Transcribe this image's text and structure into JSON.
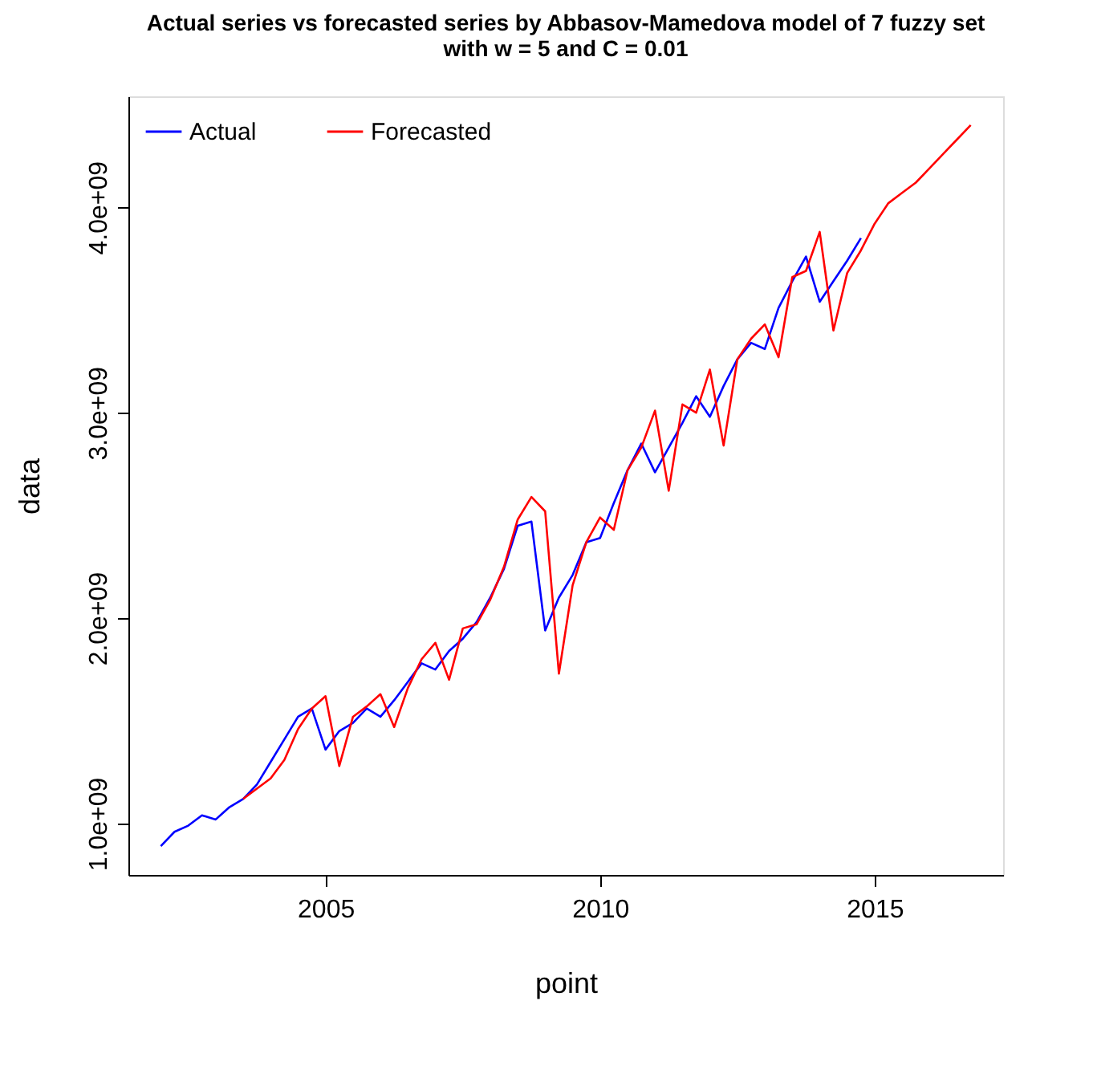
{
  "chart_data": {
    "type": "line",
    "title": "Actual series vs forecasted series by Abbasov-Mamedova model of 7 fuzzy set\nwith w = 5  and C = 0.01",
    "xlabel": "point",
    "ylabel": "data",
    "xlim": [
      2001.41,
      2017.34
    ],
    "xticks": [
      2005,
      2010,
      2015
    ],
    "ylim": [
      750000000,
      4540000000
    ],
    "yticks": [
      {
        "value": 1000000000,
        "label": "1.0e+09"
      },
      {
        "value": 2000000000,
        "label": "2.0e+09"
      },
      {
        "value": 3000000000,
        "label": "3.0e+09"
      },
      {
        "value": 4000000000,
        "label": "4.0e+09"
      }
    ],
    "grid": false,
    "legend": "top left",
    "marker": "none",
    "line_style": "solid",
    "series": [
      {
        "name": "Actual",
        "color": "#0000ff",
        "x": [
          2002.0,
          2002.25,
          2002.5,
          2002.75,
          2003.0,
          2003.25,
          2003.5,
          2003.75,
          2004.0,
          2004.25,
          2004.5,
          2004.75,
          2005.0,
          2005.25,
          2005.5,
          2005.75,
          2006.0,
          2006.25,
          2006.5,
          2006.75,
          2007.0,
          2007.25,
          2007.5,
          2007.75,
          2008.0,
          2008.25,
          2008.5,
          2008.75,
          2009.0,
          2009.25,
          2009.5,
          2009.75,
          2010.0,
          2010.25,
          2010.5,
          2010.75,
          2011.0,
          2011.25,
          2011.5,
          2011.75,
          2012.0,
          2012.25,
          2012.5,
          2012.75,
          2013.0,
          2013.25,
          2013.5,
          2013.75,
          2014.0,
          2014.25,
          2014.5,
          2014.75
        ],
        "values": [
          890000000,
          960000000,
          990000000,
          1040000000,
          1020000000,
          1080000000,
          1120000000,
          1190000000,
          1300000000,
          1410000000,
          1520000000,
          1560000000,
          1360000000,
          1450000000,
          1490000000,
          1560000000,
          1520000000,
          1600000000,
          1690000000,
          1780000000,
          1750000000,
          1840000000,
          1900000000,
          1980000000,
          2100000000,
          2240000000,
          2450000000,
          2470000000,
          1940000000,
          2100000000,
          2210000000,
          2370000000,
          2390000000,
          2560000000,
          2720000000,
          2850000000,
          2710000000,
          2830000000,
          2950000000,
          3080000000,
          2980000000,
          3130000000,
          3260000000,
          3340000000,
          3310000000,
          3510000000,
          3640000000,
          3760000000,
          3540000000,
          3640000000,
          3740000000,
          3850000000
        ]
      },
      {
        "name": "Forecasted",
        "color": "#ff0000",
        "x": [
          2003.5,
          2003.75,
          2004.0,
          2004.25,
          2004.5,
          2004.75,
          2005.0,
          2005.25,
          2005.5,
          2005.75,
          2006.0,
          2006.25,
          2006.5,
          2006.75,
          2007.0,
          2007.25,
          2007.5,
          2007.75,
          2008.0,
          2008.25,
          2008.5,
          2008.75,
          2009.0,
          2009.25,
          2009.5,
          2009.75,
          2010.0,
          2010.25,
          2010.5,
          2010.75,
          2011.0,
          2011.25,
          2011.5,
          2011.75,
          2012.0,
          2012.25,
          2012.5,
          2012.75,
          2013.0,
          2013.25,
          2013.5,
          2013.75,
          2014.0,
          2014.25,
          2014.5,
          2014.75,
          2015.0,
          2015.25,
          2015.5,
          2015.75,
          2016.0,
          2016.25,
          2016.5,
          2016.75
        ],
        "values": [
          1120000000,
          1170000000,
          1220000000,
          1310000000,
          1460000000,
          1560000000,
          1620000000,
          1280000000,
          1520000000,
          1570000000,
          1630000000,
          1470000000,
          1660000000,
          1800000000,
          1880000000,
          1700000000,
          1950000000,
          1970000000,
          2090000000,
          2250000000,
          2480000000,
          2590000000,
          2520000000,
          1730000000,
          2160000000,
          2370000000,
          2490000000,
          2430000000,
          2720000000,
          2830000000,
          3010000000,
          2620000000,
          3040000000,
          3000000000,
          3210000000,
          2840000000,
          3260000000,
          3360000000,
          3430000000,
          3270000000,
          3660000000,
          3690000000,
          3880000000,
          3400000000,
          3680000000,
          3790000000,
          3920000000,
          4020000000,
          4070000000,
          4120000000,
          4190000000,
          4260000000,
          4330000000,
          4400000000
        ]
      }
    ]
  }
}
